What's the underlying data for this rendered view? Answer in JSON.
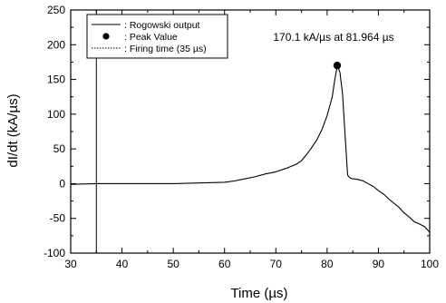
{
  "chart_data": {
    "type": "line",
    "title": "",
    "xlabel": "Time (µs)",
    "ylabel": "dI/dt (kA/µs)",
    "xlim": [
      30,
      100
    ],
    "ylim": [
      -100,
      250
    ],
    "xticks": [
      30,
      40,
      50,
      60,
      70,
      80,
      90,
      100
    ],
    "yticks": [
      -100,
      -50,
      0,
      50,
      100,
      150,
      200,
      250
    ],
    "grid": false,
    "legend_position": "top-left",
    "legend": [
      {
        "symbol": "line",
        "label": ": Rogowski output"
      },
      {
        "symbol": "dot",
        "label": ": Peak Value"
      },
      {
        "symbol": "dotted-line",
        "label": ": Firing time (35 µs)"
      }
    ],
    "series": [
      {
        "name": "Rogowski output",
        "x": [
          30,
          35,
          40,
          45,
          50,
          55,
          60,
          62,
          64,
          66,
          68,
          70,
          72,
          74,
          75,
          76,
          77,
          78,
          79,
          80,
          81,
          81.5,
          82,
          82.5,
          83,
          83.5,
          84,
          84.5,
          85,
          86,
          87,
          88,
          89,
          90,
          91,
          92,
          93,
          94,
          95,
          96,
          97,
          98,
          99,
          100
        ],
        "y": [
          -1,
          0,
          0,
          0,
          0,
          1,
          2,
          4,
          7,
          10,
          14,
          17,
          22,
          28,
          33,
          42,
          52,
          63,
          78,
          98,
          125,
          150,
          170,
          160,
          130,
          70,
          12,
          8,
          7,
          6,
          4,
          0,
          -4,
          -10,
          -15,
          -22,
          -28,
          -34,
          -42,
          -48,
          -55,
          -58,
          -62,
          -70
        ]
      }
    ],
    "peak": {
      "x": 81.964,
      "y": 170.1,
      "label": "170.1 kA/µs at 81.964 µs"
    },
    "firing_time": {
      "x": 35,
      "label": "Firing time (35 µs)"
    }
  }
}
